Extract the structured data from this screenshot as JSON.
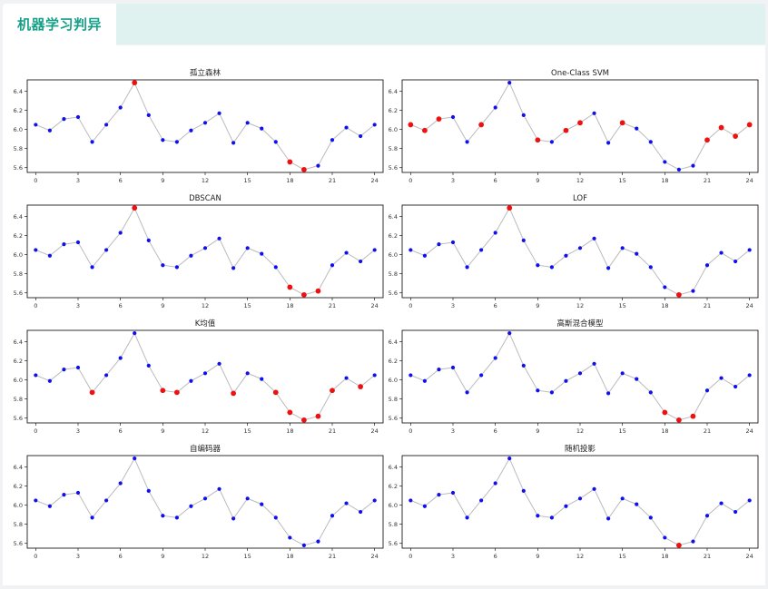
{
  "tab": {
    "label": "机器学习判异"
  },
  "colors": {
    "accent": "#17a088",
    "normal": "#1010ee",
    "anomaly": "#ee1111",
    "line": "#bbbbbb"
  },
  "chart_data": [
    {
      "type": "line",
      "title": "孤立森林",
      "x": [
        0,
        1,
        2,
        3,
        4,
        5,
        6,
        7,
        8,
        9,
        10,
        11,
        12,
        13,
        14,
        15,
        16,
        17,
        18,
        19,
        20,
        21,
        22,
        23,
        24
      ],
      "values": [
        6.05,
        5.99,
        6.11,
        6.13,
        5.87,
        6.05,
        6.23,
        6.49,
        6.15,
        5.89,
        5.87,
        5.99,
        6.07,
        6.17,
        5.86,
        6.07,
        6.01,
        5.87,
        5.66,
        5.58,
        5.62,
        5.89,
        6.02,
        5.93,
        6.05
      ],
      "anomalies": [
        7,
        18,
        19
      ],
      "xticks": [
        0,
        3,
        6,
        9,
        12,
        15,
        18,
        21,
        24
      ],
      "yticks": [
        5.6,
        5.8,
        6.0,
        6.2,
        6.4
      ],
      "ylim": [
        5.55,
        6.52
      ],
      "xlim": [
        -0.6,
        24.6
      ]
    },
    {
      "type": "line",
      "title": "One-Class SVM",
      "x": [
        0,
        1,
        2,
        3,
        4,
        5,
        6,
        7,
        8,
        9,
        10,
        11,
        12,
        13,
        14,
        15,
        16,
        17,
        18,
        19,
        20,
        21,
        22,
        23,
        24
      ],
      "values": [
        6.05,
        5.99,
        6.11,
        6.13,
        5.87,
        6.05,
        6.23,
        6.49,
        6.15,
        5.89,
        5.87,
        5.99,
        6.07,
        6.17,
        5.86,
        6.07,
        6.01,
        5.87,
        5.66,
        5.58,
        5.62,
        5.89,
        6.02,
        5.93,
        6.05
      ],
      "anomalies": [
        0,
        1,
        2,
        5,
        9,
        11,
        12,
        15,
        21,
        22,
        23,
        24
      ],
      "xticks": [
        0,
        3,
        6,
        9,
        12,
        15,
        18,
        21,
        24
      ],
      "yticks": [
        5.6,
        5.8,
        6.0,
        6.2,
        6.4
      ],
      "ylim": [
        5.55,
        6.52
      ],
      "xlim": [
        -0.6,
        24.6
      ]
    },
    {
      "type": "line",
      "title": "DBSCAN",
      "x": [
        0,
        1,
        2,
        3,
        4,
        5,
        6,
        7,
        8,
        9,
        10,
        11,
        12,
        13,
        14,
        15,
        16,
        17,
        18,
        19,
        20,
        21,
        22,
        23,
        24
      ],
      "values": [
        6.05,
        5.99,
        6.11,
        6.13,
        5.87,
        6.05,
        6.23,
        6.49,
        6.15,
        5.89,
        5.87,
        5.99,
        6.07,
        6.17,
        5.86,
        6.07,
        6.01,
        5.87,
        5.66,
        5.58,
        5.62,
        5.89,
        6.02,
        5.93,
        6.05
      ],
      "anomalies": [
        7,
        18,
        19,
        20
      ],
      "xticks": [
        0,
        3,
        6,
        9,
        12,
        15,
        18,
        21,
        24
      ],
      "yticks": [
        5.6,
        5.8,
        6.0,
        6.2,
        6.4
      ],
      "ylim": [
        5.55,
        6.52
      ],
      "xlim": [
        -0.6,
        24.6
      ]
    },
    {
      "type": "line",
      "title": "LOF",
      "x": [
        0,
        1,
        2,
        3,
        4,
        5,
        6,
        7,
        8,
        9,
        10,
        11,
        12,
        13,
        14,
        15,
        16,
        17,
        18,
        19,
        20,
        21,
        22,
        23,
        24
      ],
      "values": [
        6.05,
        5.99,
        6.11,
        6.13,
        5.87,
        6.05,
        6.23,
        6.49,
        6.15,
        5.89,
        5.87,
        5.99,
        6.07,
        6.17,
        5.86,
        6.07,
        6.01,
        5.87,
        5.66,
        5.58,
        5.62,
        5.89,
        6.02,
        5.93,
        6.05
      ],
      "anomalies": [
        7,
        19
      ],
      "xticks": [
        0,
        3,
        6,
        9,
        12,
        15,
        18,
        21,
        24
      ],
      "yticks": [
        5.6,
        5.8,
        6.0,
        6.2,
        6.4
      ],
      "ylim": [
        5.55,
        6.52
      ],
      "xlim": [
        -0.6,
        24.6
      ]
    },
    {
      "type": "line",
      "title": "K均值",
      "x": [
        0,
        1,
        2,
        3,
        4,
        5,
        6,
        7,
        8,
        9,
        10,
        11,
        12,
        13,
        14,
        15,
        16,
        17,
        18,
        19,
        20,
        21,
        22,
        23,
        24
      ],
      "values": [
        6.05,
        5.99,
        6.11,
        6.13,
        5.87,
        6.05,
        6.23,
        6.49,
        6.15,
        5.89,
        5.87,
        5.99,
        6.07,
        6.17,
        5.86,
        6.07,
        6.01,
        5.87,
        5.66,
        5.58,
        5.62,
        5.89,
        6.02,
        5.93,
        6.05
      ],
      "anomalies": [
        4,
        9,
        10,
        14,
        17,
        18,
        19,
        20,
        21,
        23
      ],
      "xticks": [
        0,
        3,
        6,
        9,
        12,
        15,
        18,
        21,
        24
      ],
      "yticks": [
        5.6,
        5.8,
        6.0,
        6.2,
        6.4
      ],
      "ylim": [
        5.55,
        6.52
      ],
      "xlim": [
        -0.6,
        24.6
      ]
    },
    {
      "type": "line",
      "title": "高斯混合模型",
      "x": [
        0,
        1,
        2,
        3,
        4,
        5,
        6,
        7,
        8,
        9,
        10,
        11,
        12,
        13,
        14,
        15,
        16,
        17,
        18,
        19,
        20,
        21,
        22,
        23,
        24
      ],
      "values": [
        6.05,
        5.99,
        6.11,
        6.13,
        5.87,
        6.05,
        6.23,
        6.49,
        6.15,
        5.89,
        5.87,
        5.99,
        6.07,
        6.17,
        5.86,
        6.07,
        6.01,
        5.87,
        5.66,
        5.58,
        5.62,
        5.89,
        6.02,
        5.93,
        6.05
      ],
      "anomalies": [
        18,
        19,
        20
      ],
      "xticks": [
        0,
        3,
        6,
        9,
        12,
        15,
        18,
        21,
        24
      ],
      "yticks": [
        5.6,
        5.8,
        6.0,
        6.2,
        6.4
      ],
      "ylim": [
        5.55,
        6.52
      ],
      "xlim": [
        -0.6,
        24.6
      ]
    },
    {
      "type": "line",
      "title": "自编码器",
      "x": [
        0,
        1,
        2,
        3,
        4,
        5,
        6,
        7,
        8,
        9,
        10,
        11,
        12,
        13,
        14,
        15,
        16,
        17,
        18,
        19,
        20,
        21,
        22,
        23,
        24
      ],
      "values": [
        6.05,
        5.99,
        6.11,
        6.13,
        5.87,
        6.05,
        6.23,
        6.49,
        6.15,
        5.89,
        5.87,
        5.99,
        6.07,
        6.17,
        5.86,
        6.07,
        6.01,
        5.87,
        5.66,
        5.58,
        5.62,
        5.89,
        6.02,
        5.93,
        6.05
      ],
      "anomalies": [],
      "xticks": [
        0,
        3,
        6,
        9,
        12,
        15,
        18,
        21,
        24
      ],
      "yticks": [
        5.6,
        5.8,
        6.0,
        6.2,
        6.4
      ],
      "ylim": [
        5.55,
        6.52
      ],
      "xlim": [
        -0.6,
        24.6
      ]
    },
    {
      "type": "line",
      "title": "随机投影",
      "x": [
        0,
        1,
        2,
        3,
        4,
        5,
        6,
        7,
        8,
        9,
        10,
        11,
        12,
        13,
        14,
        15,
        16,
        17,
        18,
        19,
        20,
        21,
        22,
        23,
        24
      ],
      "values": [
        6.05,
        5.99,
        6.11,
        6.13,
        5.87,
        6.05,
        6.23,
        6.49,
        6.15,
        5.89,
        5.87,
        5.99,
        6.07,
        6.17,
        5.86,
        6.07,
        6.01,
        5.87,
        5.66,
        5.58,
        5.62,
        5.89,
        6.02,
        5.93,
        6.05
      ],
      "anomalies": [
        19
      ],
      "xticks": [
        0,
        3,
        6,
        9,
        12,
        15,
        18,
        21,
        24
      ],
      "yticks": [
        5.6,
        5.8,
        6.0,
        6.2,
        6.4
      ],
      "ylim": [
        5.55,
        6.52
      ],
      "xlim": [
        -0.6,
        24.6
      ]
    }
  ]
}
